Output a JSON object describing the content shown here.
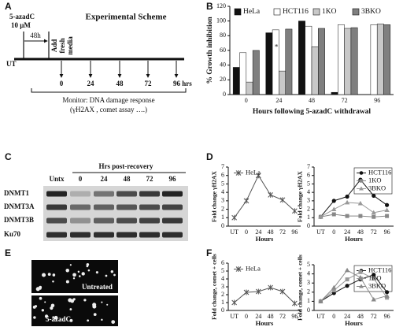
{
  "panel_labels": [
    "A",
    "B",
    "C",
    "D",
    "E",
    "F"
  ],
  "scheme": {
    "title": "Experimental Scheme",
    "drug": "5-azadC",
    "dose": "10 μM",
    "duration": "48h",
    "untreated": "UT",
    "media": [
      "Add",
      "fresh",
      "media"
    ],
    "timepoints": [
      "0",
      "24",
      "48",
      "72",
      "96 hrs"
    ],
    "monitor": [
      "Monitor: DNA damage response",
      "(γH2AX , comet assay ….)"
    ]
  },
  "blot": {
    "title": "Hrs post-recovery",
    "lanes": [
      "Untx",
      "0",
      "24",
      "48",
      "72",
      "96"
    ],
    "rows": [
      "DNMT1",
      "DNMT3A",
      "DNMT3B",
      "Ku70"
    ]
  },
  "images": {
    "captions": [
      "Untreated",
      "5-azadC"
    ]
  },
  "chart_data": [
    {
      "type": "bar",
      "ylabel": "% Growth inhibition",
      "xlabel": "Hours following 5-azadC withdrawal",
      "categories": [
        "0",
        "24",
        "48",
        "72",
        "96"
      ],
      "ylim": [
        0,
        120
      ],
      "yticks": [
        0,
        20,
        40,
        60,
        80,
        100,
        120
      ],
      "legend": "top",
      "annotations": [
        {
          "text": "*"
        }
      ],
      "series": [
        {
          "name": "HeLa",
          "color": "#111111",
          "values": [
            37,
            84,
            100,
            3,
            null
          ]
        },
        {
          "name": "HCT116",
          "color": "#ffffff",
          "values": [
            57,
            88,
            93,
            95,
            95
          ]
        },
        {
          "name": "1KO",
          "color": "#c8c8c8",
          "values": [
            17,
            32,
            65,
            90,
            96
          ]
        },
        {
          "name": "3BKO",
          "color": "#7f7f7f",
          "values": [
            60,
            89,
            90,
            91,
            95
          ]
        }
      ]
    },
    {
      "type": "line",
      "ylabel": "Fold change γH2AX",
      "xlabel": "Hours",
      "categories": [
        "UT",
        "0",
        "24",
        "48",
        "72",
        "96"
      ],
      "ylim": [
        0,
        7
      ],
      "yticks": [
        0,
        1,
        2,
        3,
        4,
        5,
        6,
        7
      ],
      "legend": "upper left",
      "series": [
        {
          "name": "HeLa",
          "color": "#555555",
          "marker": "x",
          "values": [
            1,
            3,
            6,
            3.7,
            3.1,
            1.8
          ]
        }
      ]
    },
    {
      "type": "line",
      "ylabel": "Fold change γH2AX",
      "xlabel": "Hours",
      "categories": [
        "UT",
        "0",
        "24",
        "48",
        "72",
        "96"
      ],
      "ylim": [
        0,
        7
      ],
      "yticks": [
        0,
        1,
        2,
        3,
        4,
        5,
        6,
        7
      ],
      "legend": "upper right",
      "series": [
        {
          "name": "HCT116",
          "color": "#111111",
          "marker": "circle",
          "values": [
            1.1,
            3,
            3.5,
            5.5,
            3.6,
            2.5
          ]
        },
        {
          "name": "1KO",
          "color": "#888888",
          "marker": "square",
          "values": [
            1.1,
            1.4,
            1.2,
            1.2,
            1.1,
            1.2
          ]
        },
        {
          "name": "3BKO",
          "color": "#999999",
          "marker": "triangle",
          "values": [
            1.1,
            2,
            2.8,
            2.7,
            1.6,
            1.9
          ]
        }
      ]
    },
    {
      "type": "line",
      "ylabel": "Fold change, comet + cells",
      "xlabel": "Hours",
      "categories": [
        "UT",
        "0",
        "24",
        "48",
        "72",
        "96"
      ],
      "ylim": [
        0,
        6
      ],
      "yticks": [
        0,
        1,
        2,
        3,
        4,
        5,
        6
      ],
      "legend": "upper left",
      "series": [
        {
          "name": "HeLa",
          "color": "#555555",
          "marker": "x",
          "values": [
            1,
            2.3,
            2.4,
            2.9,
            2.4,
            0.9
          ]
        }
      ]
    },
    {
      "type": "line",
      "ylabel": "Fold change, comet + cells",
      "xlabel": "Hours",
      "categories": [
        "UT",
        "0",
        "24",
        "48",
        "72",
        "96"
      ],
      "ylim": [
        0,
        5
      ],
      "yticks": [
        0,
        1,
        2,
        3,
        4,
        5
      ],
      "legend": "upper right",
      "series": [
        {
          "name": "HCT116",
          "color": "#111111",
          "marker": "circle",
          "values": [
            1,
            1.9,
            2.7,
            3.4,
            3.9,
            2.0
          ]
        },
        {
          "name": "1KO",
          "color": "#999999",
          "marker": "square",
          "values": [
            1,
            2.2,
            3.4,
            4.2,
            3.5,
            1.4
          ]
        },
        {
          "name": "3BKO",
          "color": "#888888",
          "marker": "triangle",
          "values": [
            1,
            2.5,
            4.4,
            3.6,
            1.2,
            1.6
          ]
        }
      ]
    }
  ]
}
